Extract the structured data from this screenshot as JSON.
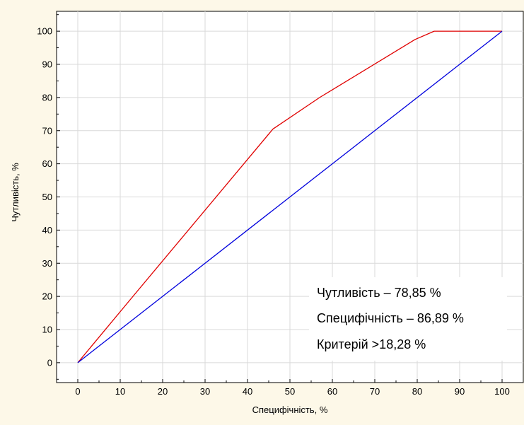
{
  "chart_data": {
    "type": "line",
    "title": "",
    "xlabel": "Специфічність, %",
    "ylabel": "Чутливість, %",
    "xlim": [
      -5,
      105
    ],
    "ylim": [
      -6,
      106
    ],
    "xticks": [
      0,
      10,
      20,
      30,
      40,
      50,
      60,
      70,
      80,
      90,
      100
    ],
    "yticks": [
      0,
      10,
      20,
      30,
      40,
      50,
      60,
      70,
      80,
      90,
      100
    ],
    "grid": true,
    "legend": "none",
    "series": [
      {
        "color": "#e00000",
        "x": [
          0,
          13,
          46,
          57,
          79.5,
          84,
          100
        ],
        "y": [
          0,
          20,
          70.5,
          80,
          97.5,
          100,
          100
        ]
      },
      {
        "color": "#0000dd",
        "x": [
          0,
          100
        ],
        "y": [
          0,
          100
        ]
      }
    ],
    "annotations": [
      "Чутливість – 78,85 %",
      "Специфічність – 86,89 %",
      "Критерій >18,28 %"
    ]
  }
}
